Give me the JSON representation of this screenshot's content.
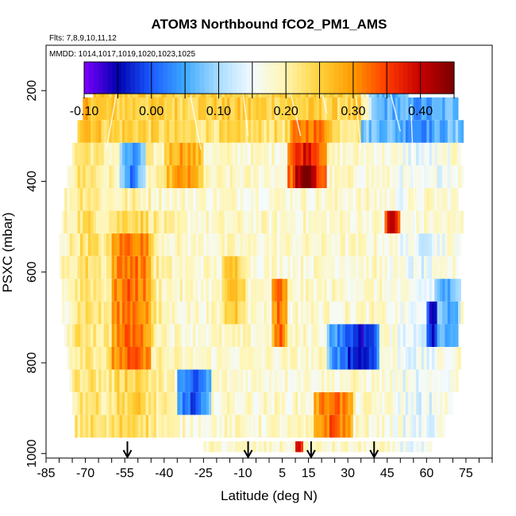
{
  "chart_data": {
    "type": "heatmap",
    "title": "ATOM3 Northbound fCO2_PM1_AMS",
    "flights_label": "Flts: 7,8,9,10,11,12",
    "dates_label": "MMDD: 1014,1017,1019,1020,1023,1025",
    "xlabel": "Latitude (deg N)",
    "ylabel": "PSXC (mbar)",
    "xlim": [
      -85,
      85
    ],
    "ylim": [
      1010,
      100
    ],
    "x_ticks": [
      -85,
      -70,
      -55,
      -40,
      -25,
      -10,
      5,
      15,
      30,
      45,
      60,
      75
    ],
    "y_ticks": [
      200,
      400,
      600,
      800,
      1000
    ],
    "colorbar": {
      "min": -0.1,
      "max": 0.45,
      "ticks": [
        "-0.10",
        "0.00",
        "0.10",
        "0.20",
        "0.30",
        "0.40"
      ],
      "tick_values": [
        -0.1,
        0.0,
        0.1,
        0.2,
        0.3,
        0.4
      ],
      "colors": [
        "#7f00ff",
        "#0000b0",
        "#1a5cff",
        "#3fa9ff",
        "#a9dcff",
        "#f4fbff",
        "#fff5b0",
        "#ffd23a",
        "#ff9a00",
        "#ff3a00",
        "#c80000",
        "#7a0000"
      ]
    },
    "arrow_latitudes": [
      -54,
      -8,
      16,
      40
    ],
    "lat_range_by_level": [
      {
        "p": 200,
        "lat": [
          -67,
          53
        ]
      },
      {
        "p": 240,
        "lat": [
          -71,
          72
        ]
      },
      {
        "p": 290,
        "lat": [
          -73,
          74
        ]
      },
      {
        "p": 340,
        "lat": [
          -75,
          73
        ]
      },
      {
        "p": 390,
        "lat": [
          -77,
          74
        ]
      },
      {
        "p": 440,
        "lat": [
          -78,
          72
        ]
      },
      {
        "p": 490,
        "lat": [
          -79,
          74
        ]
      },
      {
        "p": 540,
        "lat": [
          -80,
          73
        ]
      },
      {
        "p": 590,
        "lat": [
          -80,
          72
        ]
      },
      {
        "p": 640,
        "lat": [
          -79,
          73
        ]
      },
      {
        "p": 690,
        "lat": [
          -79,
          74
        ]
      },
      {
        "p": 740,
        "lat": [
          -78,
          72
        ]
      },
      {
        "p": 790,
        "lat": [
          -77,
          73
        ]
      },
      {
        "p": 840,
        "lat": [
          -76,
          72
        ]
      },
      {
        "p": 890,
        "lat": [
          -75,
          70
        ]
      },
      {
        "p": 940,
        "lat": [
          -74,
          67
        ]
      },
      {
        "p": 985,
        "lat": [
          -25,
          62
        ]
      }
    ],
    "features": [
      {
        "p": [
          330,
          430
        ],
        "lat": [
          7,
          22
        ],
        "value": 0.4
      },
      {
        "p": [
          360,
          410
        ],
        "lat": [
          10,
          18
        ],
        "value": 0.44
      },
      {
        "p": [
          270,
          330
        ],
        "lat": [
          8,
          24
        ],
        "value": 0.33
      },
      {
        "p": [
          180,
          240
        ],
        "lat": [
          -65,
          40
        ],
        "value": 0.25
      },
      {
        "p": [
          180,
          240
        ],
        "lat": [
          38,
          53
        ],
        "value": 0.06
      },
      {
        "p": [
          340,
          420
        ],
        "lat": [
          -57,
          -47
        ],
        "value": 0.02
      },
      {
        "p": [
          330,
          420
        ],
        "lat": [
          -40,
          -25
        ],
        "value": 0.3
      },
      {
        "p": [
          520,
          800
        ],
        "lat": [
          -60,
          -45
        ],
        "value": 0.33
      },
      {
        "p": [
          560,
          720
        ],
        "lat": [
          -18,
          -8
        ],
        "value": 0.26
      },
      {
        "p": [
          640,
          760
        ],
        "lat": [
          1,
          7
        ],
        "value": 0.33
      },
      {
        "p": [
          710,
          830
        ],
        "lat": [
          22,
          35
        ],
        "value": 0.01
      },
      {
        "p": [
          740,
          820
        ],
        "lat": [
          30,
          42
        ],
        "value": -0.05
      },
      {
        "p": [
          840,
          920
        ],
        "lat": [
          -35,
          -22
        ],
        "value": -0.02
      },
      {
        "p": [
          880,
          950
        ],
        "lat": [
          17,
          32
        ],
        "value": 0.34
      },
      {
        "p": [
          450,
          520
        ],
        "lat": [
          44,
          50
        ],
        "value": 0.42
      },
      {
        "p": [
          640,
          780
        ],
        "lat": [
          63,
          73
        ],
        "value": 0.04
      },
      {
        "p": [
          690,
          760
        ],
        "lat": [
          60,
          64
        ],
        "value": -0.06
      },
      {
        "p": [
          440,
          520
        ],
        "lat": [
          52,
          72
        ],
        "value": 0.18
      },
      {
        "p": [
          960,
          1010
        ],
        "lat": [
          10,
          13
        ],
        "value": 0.42
      }
    ]
  }
}
